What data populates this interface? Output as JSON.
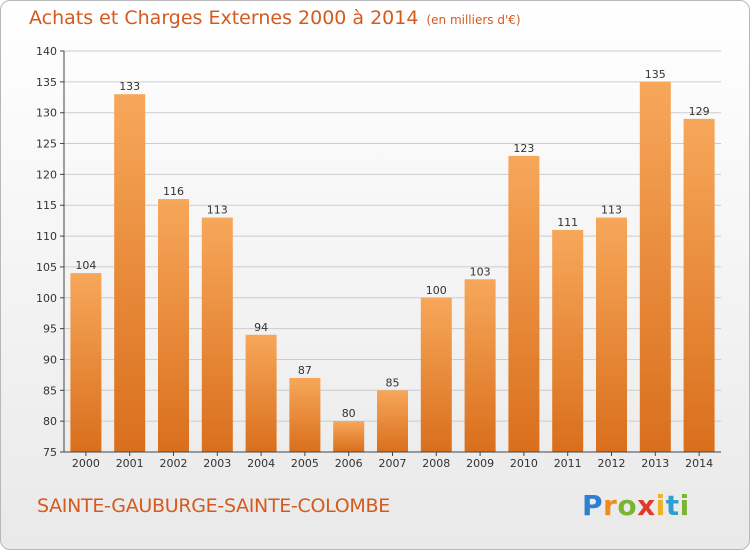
{
  "title": "Achats et Charges Externes 2000 à 2014",
  "units": "(en milliers d'€)",
  "commune": "SAINTE-GAUBURGE-SAINTE-COLOMBE",
  "logo": {
    "text": "Proxiti",
    "letters": [
      {
        "ch": "P",
        "color": "#2e7fd0"
      },
      {
        "ch": "r",
        "color": "#f08a1a"
      },
      {
        "ch": "o",
        "color": "#79b532"
      },
      {
        "ch": "x",
        "color": "#e03a2a"
      },
      {
        "ch": "i",
        "color": "#f0b21a"
      },
      {
        "ch": "t",
        "color": "#2e9fd0"
      },
      {
        "ch": "i",
        "color": "#79b532"
      }
    ]
  },
  "colors": {
    "bar_light": "#f7a75a",
    "bar_dark": "#d96f1c",
    "text_accent": "#d45a1e",
    "axis": "#444444",
    "grid": "#cccccc"
  },
  "chart_data": {
    "type": "bar",
    "categories": [
      "2000",
      "2001",
      "2002",
      "2003",
      "2004",
      "2005",
      "2006",
      "2007",
      "2008",
      "2009",
      "2010",
      "2011",
      "2012",
      "2013",
      "2014"
    ],
    "values": [
      104,
      133,
      116,
      113,
      94,
      87,
      80,
      85,
      100,
      103,
      123,
      111,
      113,
      135,
      129
    ],
    "ylim": [
      75,
      140
    ],
    "yticks": [
      75,
      80,
      85,
      90,
      95,
      100,
      105,
      110,
      115,
      120,
      125,
      130,
      135,
      140
    ],
    "xlabel": "",
    "ylabel": "",
    "grid": true,
    "data_labels": true
  }
}
